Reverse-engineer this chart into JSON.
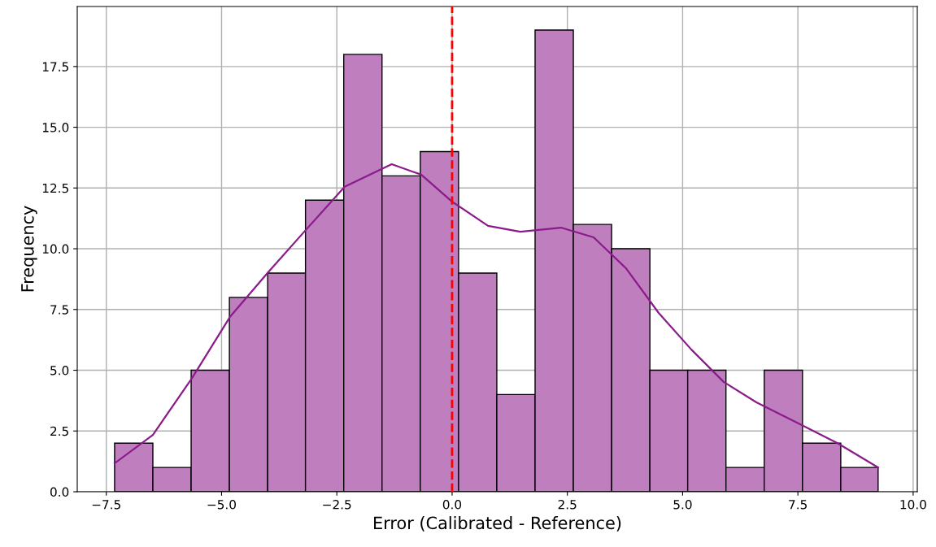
{
  "chart_data": {
    "type": "histogram",
    "xlabel": "Error (Calibrated - Reference)",
    "ylabel": "Frequency",
    "series": [
      {
        "color": "#bf7fbf",
        "bins": [
          -7.32,
          -6.49,
          -5.66,
          -4.83,
          -4.0,
          -3.18,
          -2.35,
          -1.52,
          -0.69,
          0.14,
          0.97,
          1.8,
          2.63,
          3.46,
          4.29,
          5.11,
          5.94,
          6.77,
          7.6,
          8.43,
          9.24
        ],
        "values": [
          2,
          1,
          5,
          8,
          9,
          12,
          18,
          13,
          14,
          9,
          4,
          19,
          11,
          10,
          5,
          5,
          1,
          5,
          2,
          1
        ]
      },
      {
        "type": "line",
        "color": "#8b1a8b",
        "x": [
          -7.32,
          -6.49,
          -5.64,
          -4.82,
          -3.99,
          -3.16,
          -2.33,
          -1.31,
          -0.67,
          0.0,
          0.78,
          1.48,
          2.36,
          3.07,
          3.77,
          4.48,
          5.19,
          5.89,
          6.6,
          7.48,
          8.36,
          9.24
        ],
        "values": [
          1.17,
          2.34,
          4.68,
          7.19,
          9.03,
          10.8,
          12.55,
          13.48,
          13.05,
          11.94,
          10.94,
          10.7,
          10.87,
          10.47,
          9.2,
          7.36,
          5.85,
          4.52,
          3.68,
          2.84,
          2.0,
          1.0
        ]
      }
    ],
    "ref_lines": [
      {
        "axis": "x",
        "value": 0,
        "label": null,
        "color": "#ff0000",
        "line_style": "dashed"
      }
    ],
    "xlim": [
      -8.13,
      10.09
    ],
    "ylim": [
      0,
      19.97
    ],
    "xticks": [
      {
        "value": -7.5,
        "label": "−7.5"
      },
      {
        "value": -5,
        "label": "−5.0"
      },
      {
        "value": -2.5,
        "label": "−2.5"
      },
      {
        "value": 0,
        "label": "0.0"
      },
      {
        "value": 2.5,
        "label": "2.5"
      },
      {
        "value": 5,
        "label": "5.0"
      },
      {
        "value": 7.5,
        "label": "7.5"
      },
      {
        "value": 10,
        "label": "10.0"
      }
    ],
    "yticks": [
      {
        "value": 0,
        "label": "0.0"
      },
      {
        "value": 2.5,
        "label": "2.5"
      },
      {
        "value": 5,
        "label": "5.0"
      },
      {
        "value": 7.5,
        "label": "7.5"
      },
      {
        "value": 10,
        "label": "10.0"
      },
      {
        "value": 12.5,
        "label": "12.5"
      },
      {
        "value": 15,
        "label": "15.0"
      },
      {
        "value": 17.5,
        "label": "17.5"
      }
    ],
    "grid": true
  }
}
